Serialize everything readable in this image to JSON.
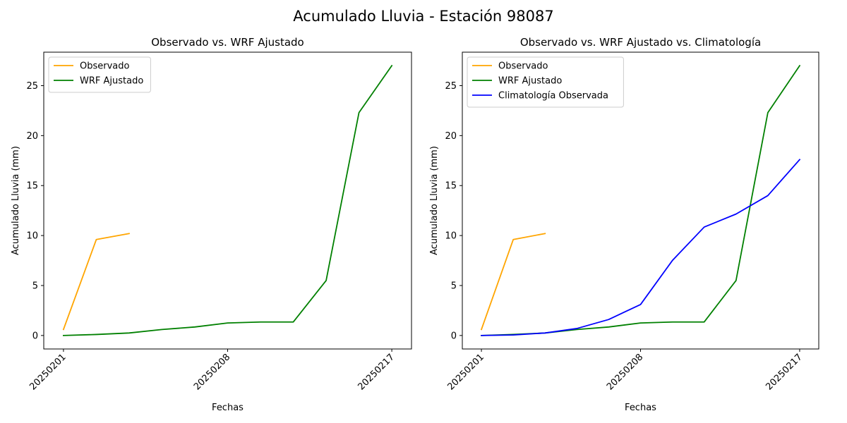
{
  "figure": {
    "suptitle": "Acumulado Lluvia - Estación 98087"
  },
  "chart_data": [
    {
      "type": "line",
      "title": "Observado vs. WRF Ajustado",
      "xlabel": "Fechas",
      "ylabel": "Acumulado Lluvia (mm)",
      "x_tick_labels": [
        "20250201",
        "20250208",
        "20250217"
      ],
      "x_tick_indices": [
        0,
        5,
        10
      ],
      "y_ticks": [
        0,
        5,
        10,
        15,
        20,
        25
      ],
      "xlim": [
        -0.6,
        10.6
      ],
      "ylim": [
        -1.35,
        28.35
      ],
      "legend_position": "upper left",
      "series": [
        {
          "name": "Observado",
          "color": "#FFA500",
          "x": [
            0,
            1,
            2
          ],
          "values": [
            0.6,
            9.6,
            10.2
          ]
        },
        {
          "name": "WRF Ajustado",
          "color": "#008000",
          "x": [
            0,
            1,
            2,
            3,
            4,
            5,
            6,
            7,
            8,
            9,
            10
          ],
          "values": [
            0.0,
            0.1,
            0.25,
            0.6,
            0.85,
            1.25,
            1.35,
            1.35,
            5.5,
            22.3,
            27.0
          ]
        }
      ]
    },
    {
      "type": "line",
      "title": "Observado vs. WRF Ajustado vs. Climatología",
      "xlabel": "Fechas",
      "ylabel": "Acumulado Lluvia (mm)",
      "x_tick_labels": [
        "20250201",
        "20250208",
        "20250217"
      ],
      "x_tick_indices": [
        0,
        5,
        10
      ],
      "y_ticks": [
        0,
        5,
        10,
        15,
        20,
        25
      ],
      "xlim": [
        -0.6,
        10.6
      ],
      "ylim": [
        -1.35,
        28.35
      ],
      "legend_position": "upper left",
      "series": [
        {
          "name": "Observado",
          "color": "#FFA500",
          "x": [
            0,
            1,
            2
          ],
          "values": [
            0.6,
            9.6,
            10.2
          ]
        },
        {
          "name": "WRF Ajustado",
          "color": "#008000",
          "x": [
            0,
            1,
            2,
            3,
            4,
            5,
            6,
            7,
            8,
            9,
            10
          ],
          "values": [
            0.0,
            0.1,
            0.25,
            0.6,
            0.85,
            1.25,
            1.35,
            1.35,
            5.5,
            22.3,
            27.0
          ]
        },
        {
          "name": "Climatología Observada",
          "color": "#0000FF",
          "x": [
            0,
            1,
            2,
            3,
            4,
            5,
            6,
            7,
            8,
            9,
            10
          ],
          "values": [
            0.0,
            0.05,
            0.25,
            0.7,
            1.6,
            3.1,
            7.5,
            10.85,
            12.15,
            14.0,
            17.6
          ]
        }
      ]
    }
  ]
}
